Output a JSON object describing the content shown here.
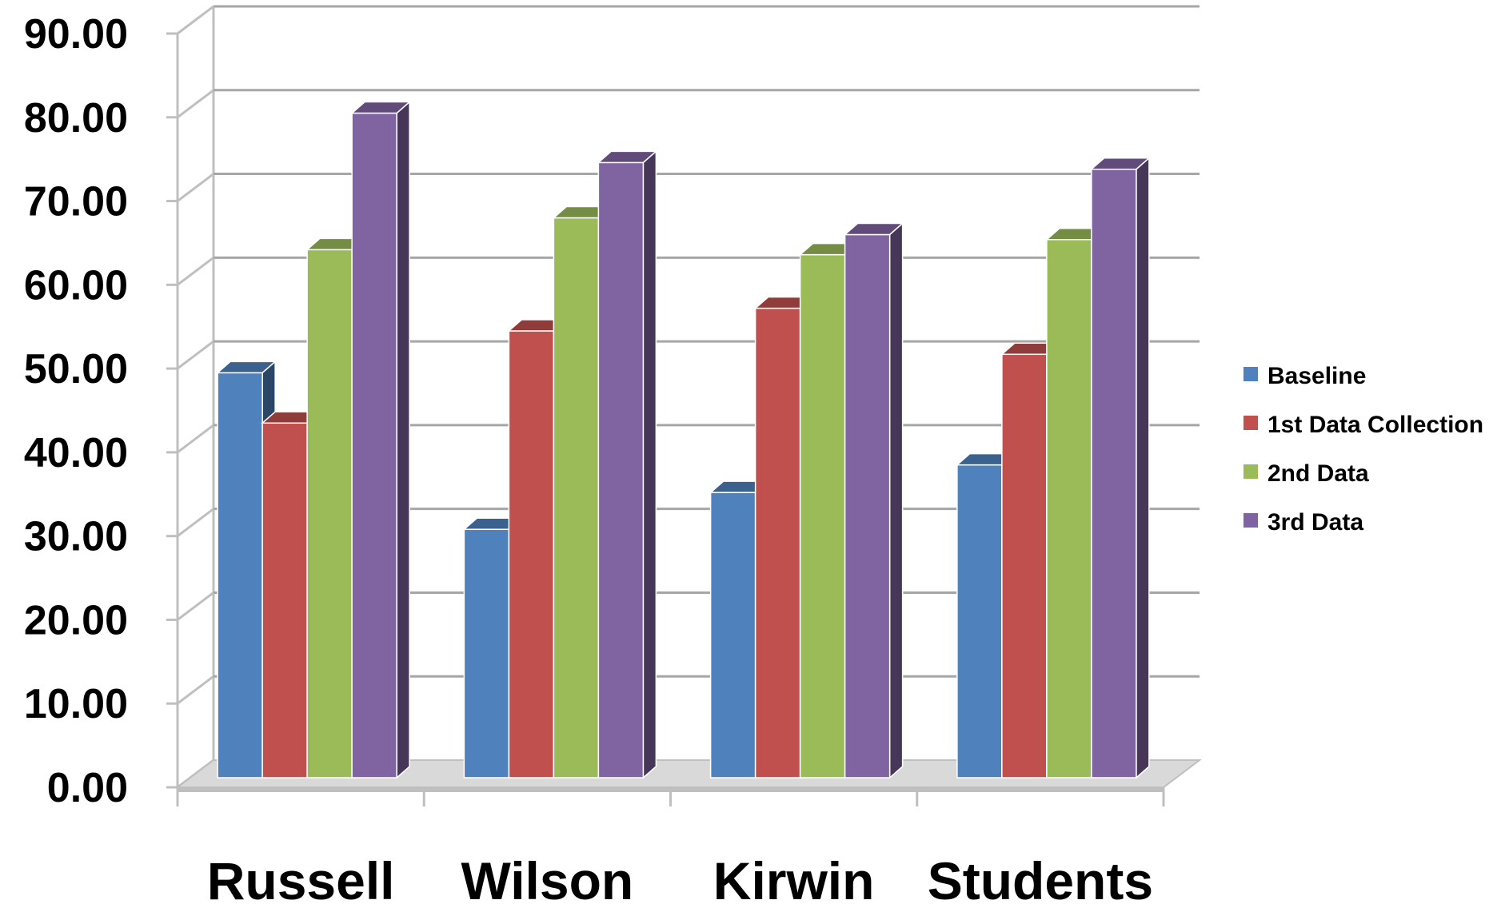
{
  "chart_data": {
    "type": "bar",
    "title": "",
    "xlabel": "",
    "ylabel": "",
    "categories": [
      "Russell",
      "Wilson",
      "Kirwin",
      "Students"
    ],
    "series": [
      {
        "name": "Baseline",
        "color": "#4F81BD",
        "values": [
          49.5,
          30.8,
          35.2,
          38.5
        ]
      },
      {
        "name": "1st Data Collection",
        "color": "#C0504D",
        "values": [
          43.5,
          54.5,
          57.2,
          51.7
        ]
      },
      {
        "name": "2nd Data",
        "color": "#9BBB59",
        "values": [
          64.2,
          68.0,
          63.6,
          65.4
        ]
      },
      {
        "name": "3rd Data",
        "color": "#8064A2",
        "values": [
          80.5,
          74.6,
          66.0,
          73.8
        ]
      }
    ],
    "ylim": [
      0,
      90
    ],
    "yticks": [
      "0.00",
      "10.00",
      "20.00",
      "30.00",
      "40.00",
      "50.00",
      "60.00",
      "70.00",
      "80.00",
      "90.00"
    ],
    "grid": true,
    "legend": "right",
    "style": "3d-clustered-column"
  }
}
